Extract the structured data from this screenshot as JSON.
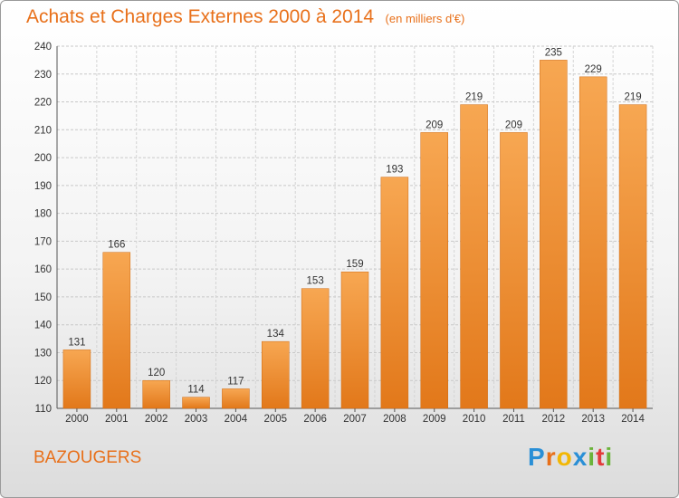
{
  "header": {
    "title": "Achats et Charges Externes 2000 à 2014",
    "unit": "(en milliers d'€)"
  },
  "footer": {
    "commune": "BAZOUGERS",
    "logo_text": "Proxiti"
  },
  "colors": {
    "accent": "#e8701a",
    "bar_light": "#f6a550",
    "bar_dark": "#e07d1e"
  },
  "chart_data": {
    "type": "bar",
    "title": "Achats et Charges Externes 2000 à 2014",
    "subtitle": "(en milliers d'€)",
    "xlabel": "",
    "ylabel": "",
    "categories": [
      "2000",
      "2001",
      "2002",
      "2003",
      "2004",
      "2005",
      "2006",
      "2007",
      "2008",
      "2009",
      "2010",
      "2011",
      "2012",
      "2013",
      "2014"
    ],
    "values": [
      131,
      166,
      120,
      114,
      117,
      134,
      153,
      159,
      193,
      209,
      219,
      209,
      235,
      229,
      219
    ],
    "ylim": [
      110,
      240
    ],
    "yticks": [
      110,
      120,
      130,
      140,
      150,
      160,
      170,
      180,
      190,
      200,
      210,
      220,
      230,
      240
    ],
    "grid": true,
    "legend": "none"
  }
}
